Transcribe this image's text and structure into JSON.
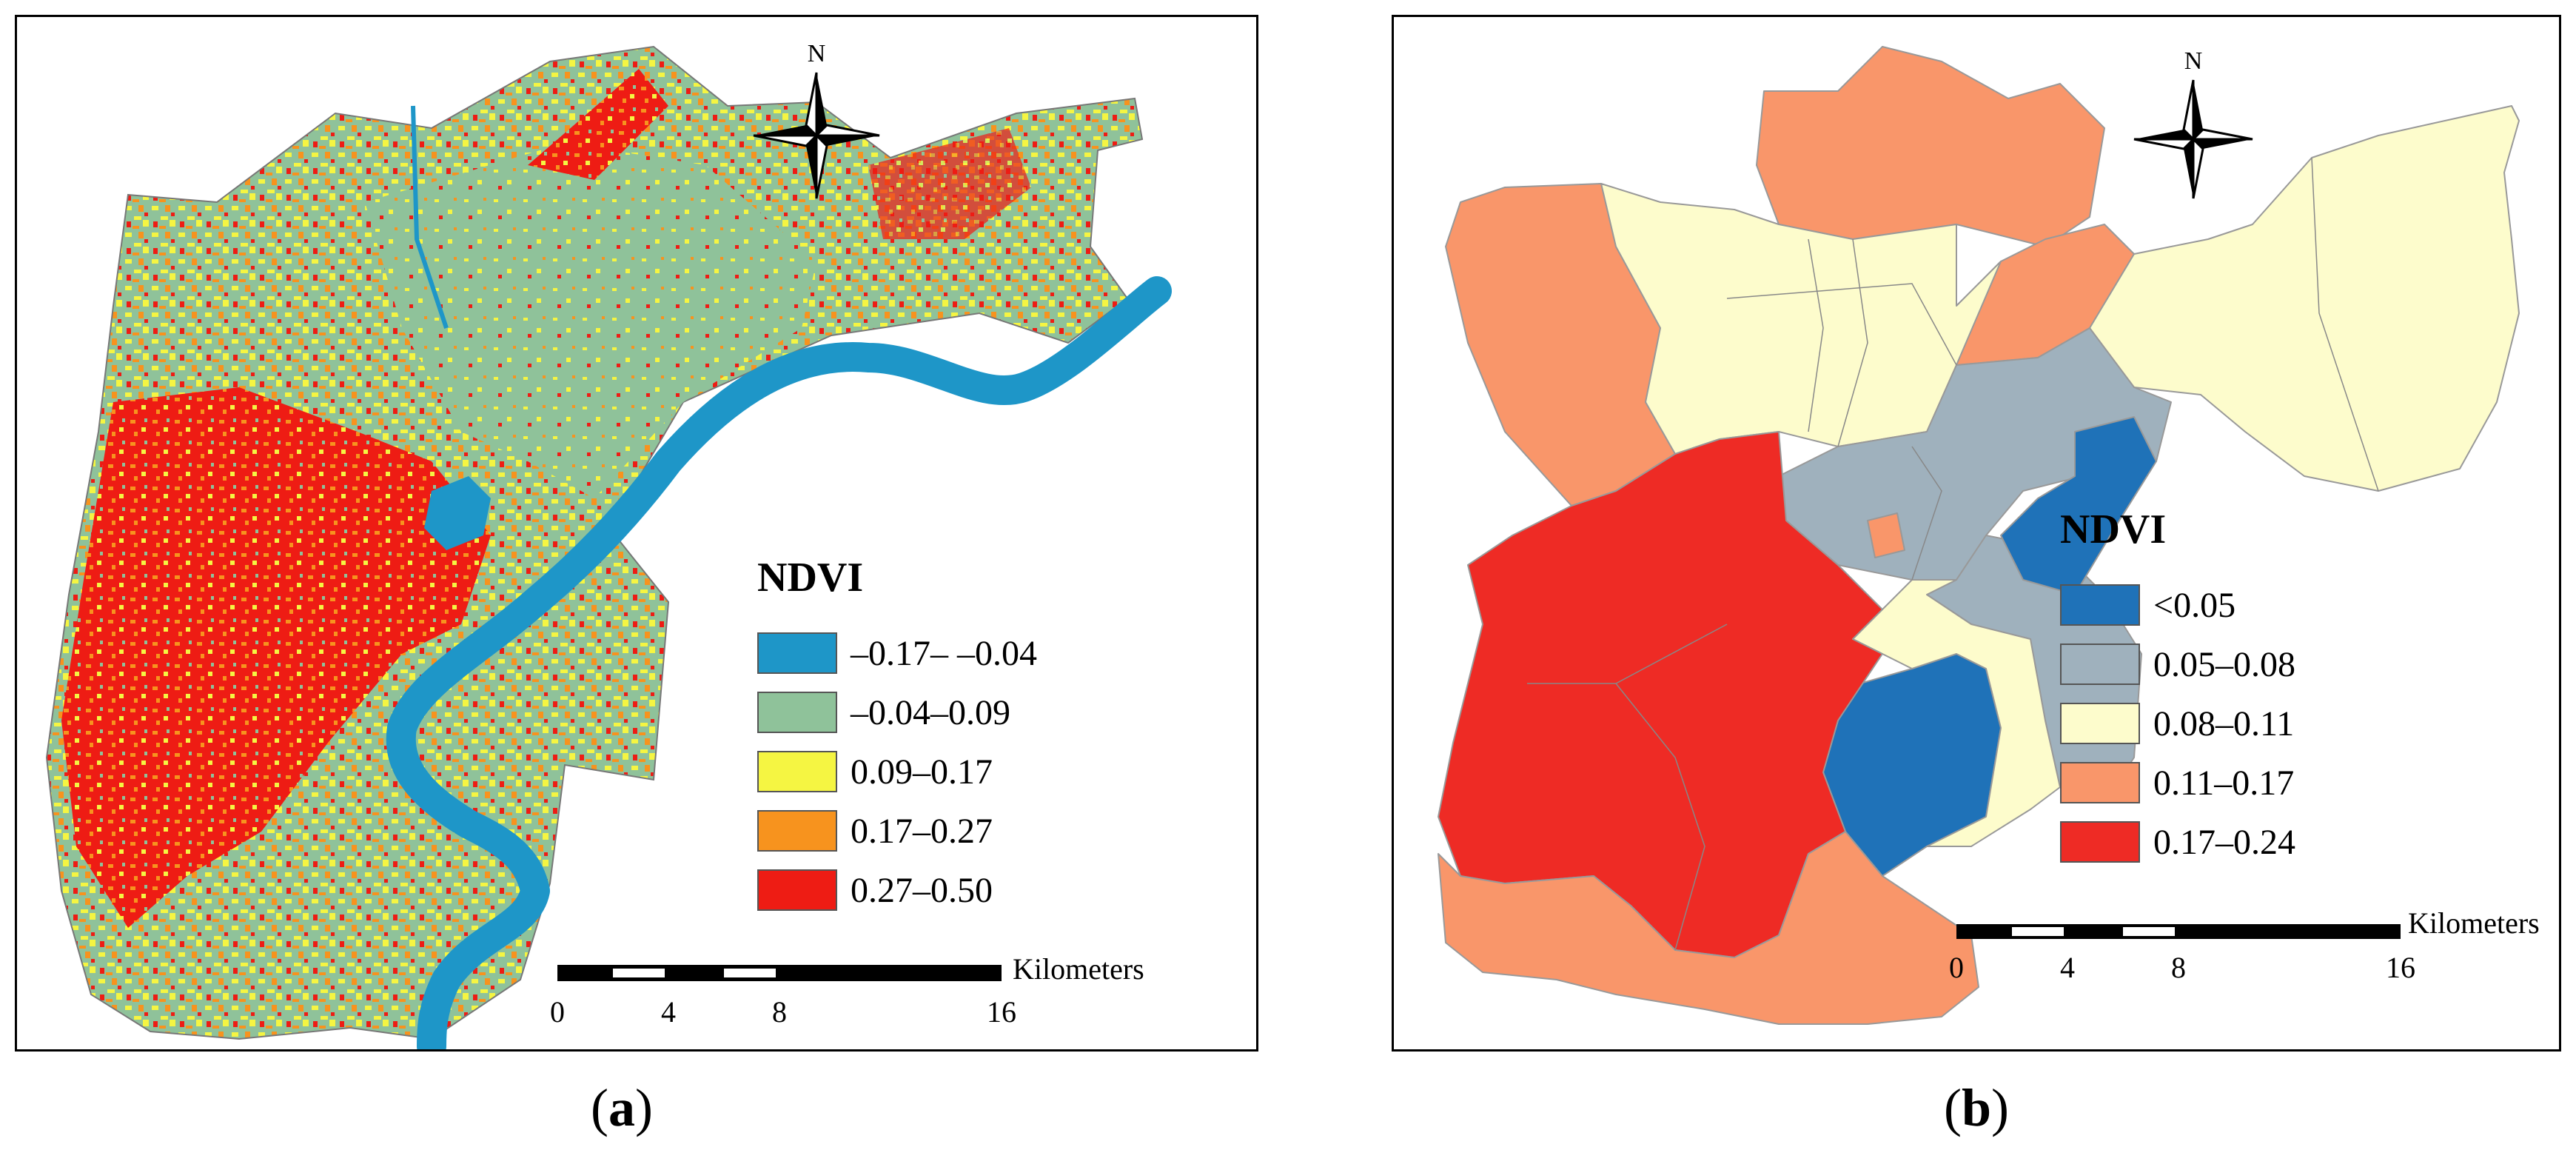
{
  "panels": [
    {
      "id": "a",
      "caption_letter": "a",
      "legend_title": "NDVI",
      "legend": [
        {
          "label": "–0.17– –0.04",
          "color": "#1e96c8"
        },
        {
          "label": "–0.04–0.09",
          "color": "#8fc29a"
        },
        {
          "label": "0.09–0.17",
          "color": "#f5f542"
        },
        {
          "label": "0.17–0.27",
          "color": "#f7931e"
        },
        {
          "label": "0.27–0.50",
          "color": "#ee1c14"
        }
      ],
      "scale_unit": "Kilometers",
      "scale_ticks": [
        "0",
        "4",
        "8",
        "16"
      ],
      "north_label": "N"
    },
    {
      "id": "b",
      "caption_letter": "b",
      "legend_title": "NDVI",
      "legend": [
        {
          "label": "<0.05",
          "color": "#1f72b8"
        },
        {
          "label": "0.05–0.08",
          "color": "#9fb1bd"
        },
        {
          "label": "0.08–0.11",
          "color": "#fdfccc"
        },
        {
          "label": "0.11–0.17",
          "color": "#f9966a"
        },
        {
          "label": "0.17–0.24",
          "color": "#ee2b25"
        }
      ],
      "scale_unit": "Kilometers",
      "scale_ticks": [
        "0",
        "4",
        "8",
        "16"
      ],
      "north_label": "N"
    }
  ]
}
